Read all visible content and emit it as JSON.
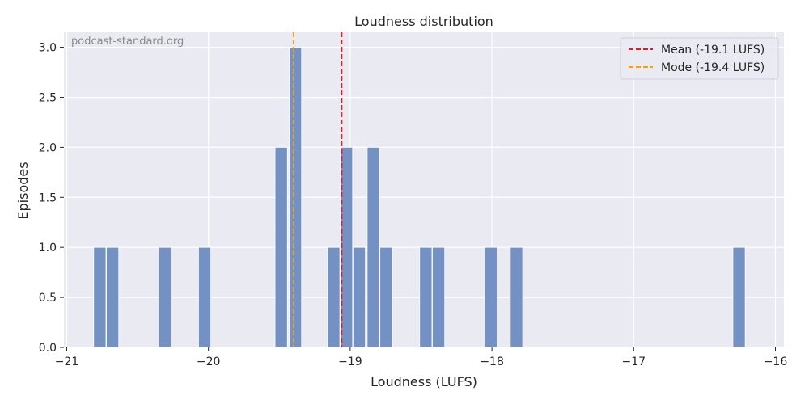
{
  "watermark": "podcast-standard.org",
  "chart_data": {
    "type": "bar",
    "subtype": "histogram",
    "title": "Loudness distribution",
    "xlabel": "Loudness (LUFS)",
    "ylabel": "Episodes",
    "xlim": [
      -21.02,
      -15.94
    ],
    "ylim": [
      0,
      3.15
    ],
    "xticks": [
      -21,
      -20,
      -19,
      -18,
      -17,
      -16
    ],
    "xtick_labels": [
      "−21",
      "−20",
      "−19",
      "−18",
      "−17",
      "−16"
    ],
    "yticks": [
      0,
      0.5,
      1,
      1.5,
      2,
      2.5,
      3
    ],
    "ytick_labels": [
      "0.0",
      "0.5",
      "1.0",
      "1.5",
      "2.0",
      "2.5",
      "3.0"
    ],
    "bin_width": 0.0925,
    "bars": [
      {
        "x0": -20.81,
        "value": 1
      },
      {
        "x0": -20.72,
        "value": 1
      },
      {
        "x0": -20.35,
        "value": 1
      },
      {
        "x0": -20.07,
        "value": 1
      },
      {
        "x0": -19.53,
        "value": 2
      },
      {
        "x0": -19.43,
        "value": 3
      },
      {
        "x0": -19.16,
        "value": 1
      },
      {
        "x0": -19.07,
        "value": 2
      },
      {
        "x0": -18.98,
        "value": 1
      },
      {
        "x0": -18.88,
        "value": 2
      },
      {
        "x0": -18.79,
        "value": 1
      },
      {
        "x0": -18.51,
        "value": 1
      },
      {
        "x0": -18.42,
        "value": 1
      },
      {
        "x0": -18.05,
        "value": 1
      },
      {
        "x0": -17.87,
        "value": 1
      },
      {
        "x0": -16.3,
        "value": 1
      }
    ],
    "lines": [
      {
        "name": "Mean (-19.1 LUFS)",
        "x": -19.06,
        "color": "#e41a1c",
        "style": "dashed"
      },
      {
        "name": "Mode (-19.4 LUFS)",
        "x": -19.4,
        "color": "#ff9f00",
        "style": "dashed"
      }
    ],
    "bar_color": "#7391c3",
    "background": "#eaeaf2",
    "grid": true,
    "legend_position": "top-right"
  }
}
